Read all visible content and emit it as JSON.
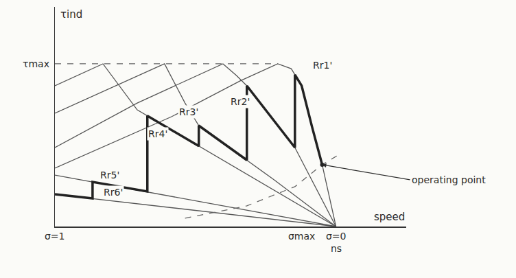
{
  "chart_data": {
    "type": "line",
    "xlabel": "speed",
    "ylabel": "τind",
    "xlim": [
      0,
      125
    ],
    "ylim": [
      0,
      135
    ],
    "tick_labels": false,
    "grid": false,
    "series": [
      {
        "name": "Rr1'",
        "color": "#555555",
        "line_style": "solid",
        "label_x": 95.1,
        "label_y": 99.2,
        "x": [
          0,
          41.5,
          65.9,
          79.3,
          84.1,
          87.8,
          91.5,
          95.1,
          100
        ],
        "values": [
          35.9,
          67.5,
          89.5,
          100,
          97.0,
          86.5,
          61.2,
          38.0,
          0
        ]
      },
      {
        "name": "Rr2'",
        "color": "#555555",
        "line_style": "solid",
        "label_x": 65.9,
        "label_y": 76.8,
        "x": [
          0,
          29.3,
          59.8,
          64.6,
          68.3,
          85.4,
          100
        ],
        "values": [
          48.5,
          75.9,
          100,
          92.8,
          86.5,
          48.5,
          0
        ]
      },
      {
        "name": "Rr3'",
        "color": "#555555",
        "line_style": "solid",
        "label_x": 47.6,
        "label_y": 70.5,
        "x": [
          0,
          39.0,
          46.3,
          51.2,
          78.0,
          100
        ],
        "values": [
          69.6,
          100,
          75.9,
          62.0,
          28.7,
          0
        ]
      },
      {
        "name": "Rr4'",
        "color": "#555555",
        "line_style": "solid",
        "label_x": 36.6,
        "label_y": 57.0,
        "x": [
          0,
          17.1,
          29.3,
          65.9,
          100
        ],
        "values": [
          86.5,
          100,
          71.7,
          34.6,
          0
        ]
      },
      {
        "name": "Rr5'",
        "color": "#555555",
        "line_style": "solid",
        "label_x": 19.5,
        "label_y": 31.6,
        "x": [
          0,
          100
        ],
        "values": [
          31.6,
          0
        ]
      },
      {
        "name": "Rr6'",
        "color": "#555555",
        "line_style": "solid",
        "label_x": 20.7,
        "label_y": 21.1,
        "x": [
          0,
          100
        ],
        "values": [
          19.8,
          0
        ]
      },
      {
        "color": "#222222",
        "line_style": "thick",
        "x": [
          0,
          13.4,
          13.4,
          32.9,
          32.9,
          51.2,
          51.2,
          68.3,
          68.3,
          85.4,
          85.4,
          87.8,
          91.5,
          95.1
        ],
        "values": [
          19.8,
          17.3,
          27.4,
          21.5,
          68.0,
          49.5,
          62.0,
          40.8,
          86.5,
          48.5,
          93.3,
          86.5,
          61.2,
          38.0
        ]
      },
      {
        "color": "#666666",
        "line_style": "dashed",
        "x": [
          46.3,
          68.3,
          85.4,
          95.1,
          101.2
        ],
        "values": [
          5.1,
          12.7,
          24.5,
          38.0,
          44.3
        ]
      },
      {
        "color": "#666666",
        "line_style": "dashed",
        "x": [
          0,
          79.3
        ],
        "values": [
          100,
          100
        ]
      }
    ],
    "y_marks": [
      {
        "text": "τmax",
        "y": 100
      }
    ],
    "x_marks": [
      {
        "text": "σ=1",
        "x": 0
      },
      {
        "text": "σmax",
        "x": 87.8
      },
      {
        "text": "σ=0",
        "x": 100
      },
      {
        "text": "ns",
        "x": 100
      }
    ],
    "operating_point": {
      "text": "operating point",
      "x": 95.1,
      "y": 38.0
    }
  }
}
